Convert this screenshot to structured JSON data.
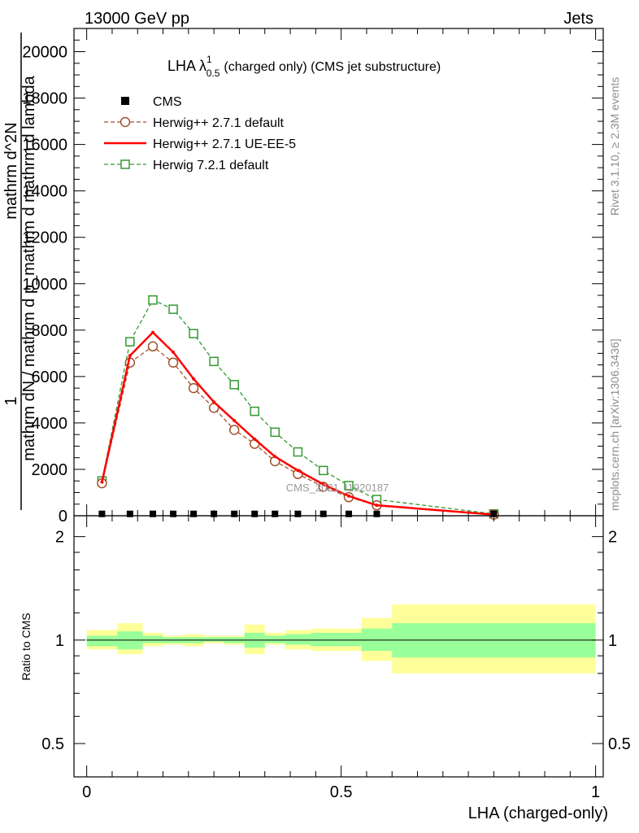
{
  "header": {
    "left": "13000 GeV pp",
    "right": "Jets"
  },
  "side_labels": {
    "rivet": "Rivet 3.1.10, ≥ 2.3M events",
    "mcplots": "mcplots.cern.ch [arXiv:1306.3436]"
  },
  "watermark": "CMS_2021_I1920187",
  "legend": {
    "title_main": "LHA λ",
    "title_sup": "1",
    "title_sub": "0.5",
    "title_rest": "(charged only) (CMS jet substructure)",
    "entries": [
      "CMS",
      "Herwig++ 2.7.1 default",
      "Herwig++ 2.7.1 UE-EE-5",
      "Herwig 7.2.1 default"
    ]
  },
  "colors": {
    "cms": "#000000",
    "herwig_default": "#a0522d",
    "herwig_ueee5": "#ff0000",
    "herwig721": "#339933",
    "band_inner": "#99ff99",
    "band_outer": "#ffff99"
  },
  "chart_data": {
    "type": "line",
    "main": {
      "ylabel_numer": "1",
      "ylabel_denom": "mathrm dN / mathrm d p_mathrm d mathrm d lambda",
      "ylabel_top": "mathrm d^2N",
      "ylim": [
        0,
        21000
      ],
      "yticks": [
        "0",
        "2000",
        "4000",
        "6000",
        "8000",
        "10000",
        "12000",
        "14000",
        "16000",
        "18000",
        "20000"
      ],
      "series": [
        {
          "name": "CMS",
          "x": [
            0.03,
            0.085,
            0.13,
            0.17,
            0.21,
            0.25,
            0.29,
            0.33,
            0.37,
            0.415,
            0.465,
            0.515,
            0.57,
            0.8
          ],
          "y": [
            80,
            80,
            80,
            80,
            80,
            80,
            80,
            80,
            80,
            80,
            80,
            80,
            80,
            80
          ]
        },
        {
          "name": "Herwig++ 2.7.1 default",
          "x": [
            0.03,
            0.085,
            0.13,
            0.17,
            0.21,
            0.25,
            0.29,
            0.33,
            0.37,
            0.415,
            0.465,
            0.515,
            0.57,
            0.8
          ],
          "y": [
            1400,
            6600,
            7300,
            6600,
            5500,
            4650,
            3700,
            3100,
            2350,
            1800,
            1250,
            800,
            450,
            50
          ]
        },
        {
          "name": "Herwig++ 2.7.1 UE-EE-5",
          "x": [
            0.03,
            0.085,
            0.13,
            0.17,
            0.21,
            0.25,
            0.29,
            0.33,
            0.37,
            0.415,
            0.465,
            0.515,
            0.57,
            0.8
          ],
          "y": [
            1450,
            6900,
            7900,
            7050,
            5900,
            4900,
            4100,
            3300,
            2550,
            1950,
            1350,
            850,
            450,
            50
          ]
        },
        {
          "name": "Herwig 7.2.1 default",
          "x": [
            0.03,
            0.085,
            0.13,
            0.17,
            0.21,
            0.25,
            0.29,
            0.33,
            0.37,
            0.415,
            0.465,
            0.515,
            0.57,
            0.8
          ],
          "y": [
            1500,
            7500,
            9300,
            8900,
            7850,
            6650,
            5650,
            4500,
            3600,
            2750,
            1950,
            1300,
            700,
            80
          ]
        }
      ]
    },
    "ratio": {
      "ylabel": "Ratio to CMS",
      "yticks": [
        "0.5",
        "1",
        "2"
      ],
      "ytick_values": [
        0.5,
        1,
        2
      ],
      "ylim": [
        0.4,
        2.3
      ],
      "log": true,
      "bins": [
        {
          "lo": 0.0,
          "hi": 0.06,
          "inner": [
            0.96,
            1.03
          ],
          "outer": [
            0.94,
            1.07
          ]
        },
        {
          "lo": 0.06,
          "hi": 0.11,
          "inner": [
            0.94,
            1.06
          ],
          "outer": [
            0.91,
            1.12
          ]
        },
        {
          "lo": 0.11,
          "hi": 0.15,
          "inner": [
            0.98,
            1.03
          ],
          "outer": [
            0.96,
            1.05
          ]
        },
        {
          "lo": 0.15,
          "hi": 0.19,
          "inner": [
            0.98,
            1.02
          ],
          "outer": [
            0.97,
            1.03
          ]
        },
        {
          "lo": 0.19,
          "hi": 0.23,
          "inner": [
            0.98,
            1.02
          ],
          "outer": [
            0.96,
            1.04
          ]
        },
        {
          "lo": 0.23,
          "hi": 0.27,
          "inner": [
            0.99,
            1.02
          ],
          "outer": [
            0.98,
            1.03
          ]
        },
        {
          "lo": 0.27,
          "hi": 0.31,
          "inner": [
            0.98,
            1.02
          ],
          "outer": [
            0.97,
            1.03
          ]
        },
        {
          "lo": 0.31,
          "hi": 0.35,
          "inner": [
            0.95,
            1.05
          ],
          "outer": [
            0.91,
            1.11
          ]
        },
        {
          "lo": 0.35,
          "hi": 0.39,
          "inner": [
            0.98,
            1.03
          ],
          "outer": [
            0.97,
            1.05
          ]
        },
        {
          "lo": 0.39,
          "hi": 0.44,
          "inner": [
            0.97,
            1.04
          ],
          "outer": [
            0.94,
            1.07
          ]
        },
        {
          "lo": 0.44,
          "hi": 0.49,
          "inner": [
            0.96,
            1.05
          ],
          "outer": [
            0.93,
            1.08
          ]
        },
        {
          "lo": 0.49,
          "hi": 0.54,
          "inner": [
            0.96,
            1.05
          ],
          "outer": [
            0.93,
            1.08
          ]
        },
        {
          "lo": 0.54,
          "hi": 0.6,
          "inner": [
            0.93,
            1.08
          ],
          "outer": [
            0.87,
            1.16
          ]
        },
        {
          "lo": 0.6,
          "hi": 1.0,
          "inner": [
            0.89,
            1.12
          ],
          "outer": [
            0.8,
            1.27
          ]
        }
      ]
    },
    "xlabel": "LHA (charged-only)",
    "xlim": [
      -0.025,
      1.015
    ],
    "xticks": [
      "0",
      "0.5",
      "1"
    ],
    "xtick_values": [
      0,
      0.5,
      1
    ]
  }
}
